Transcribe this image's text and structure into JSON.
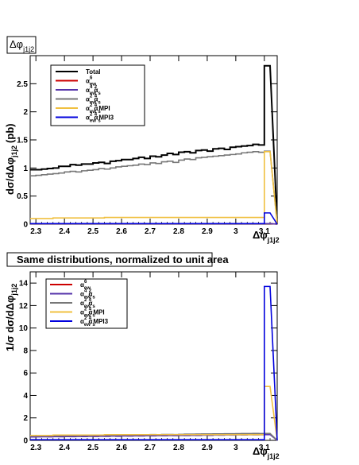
{
  "chart_data": [
    {
      "type": "line",
      "title": "Δφ_{j1j2}",
      "title_main": "Δφ",
      "title_sub": "j1j2",
      "xlabel": "Δφ_{j1j2}",
      "xlabel_main": "Δφ",
      "xlabel_sub": "j1j2",
      "ylabel": "dσ/dΔφ_{j1j2} (pb)",
      "ylabel_main": "dσ/dΔφ",
      "ylabel_sub": "j1j2",
      "ylabel_unit": "(pb)",
      "xlim": [
        2.28,
        3.145
      ],
      "ylim": [
        0,
        3.0
      ],
      "x_ticks": [
        2.3,
        2.4,
        2.5,
        2.6,
        2.7,
        2.8,
        2.9,
        3,
        3.1
      ],
      "y_ticks": [
        0,
        0.5,
        1,
        1.5,
        2,
        2.5
      ],
      "legend_position": "top-left",
      "bin_edges": [
        2.28,
        2.3,
        2.32,
        2.34,
        2.36,
        2.38,
        2.4,
        2.42,
        2.44,
        2.46,
        2.48,
        2.5,
        2.52,
        2.54,
        2.56,
        2.58,
        2.6,
        2.62,
        2.64,
        2.66,
        2.68,
        2.7,
        2.72,
        2.74,
        2.76,
        2.78,
        2.8,
        2.82,
        2.84,
        2.86,
        2.88,
        2.9,
        2.92,
        2.94,
        2.96,
        2.98,
        3.0,
        3.02,
        3.04,
        3.06,
        3.08,
        3.1,
        3.12,
        3.145
      ],
      "series": [
        {
          "name": "Total",
          "color": "#000000",
          "values": [
            0.97,
            0.97,
            0.98,
            0.99,
            1.0,
            1.03,
            1.03,
            1.06,
            1.05,
            1.07,
            1.07,
            1.09,
            1.1,
            1.08,
            1.12,
            1.13,
            1.15,
            1.15,
            1.17,
            1.19,
            1.17,
            1.21,
            1.2,
            1.23,
            1.26,
            1.24,
            1.28,
            1.29,
            1.27,
            1.31,
            1.32,
            1.3,
            1.34,
            1.35,
            1.33,
            1.37,
            1.38,
            1.39,
            1.4,
            1.42,
            1.41,
            2.82
          ]
        },
        {
          "name": "α_{ew}^{6}",
          "color": "#cc0000",
          "values": [
            0.01,
            0.01,
            0.01,
            0.01,
            0.01,
            0.01,
            0.01,
            0.01,
            0.01,
            0.01,
            0.01,
            0.01,
            0.01,
            0.01,
            0.01,
            0.01,
            0.01,
            0.01,
            0.01,
            0.01,
            0.01,
            0.01,
            0.01,
            0.01,
            0.01,
            0.01,
            0.01,
            0.01,
            0.01,
            0.01,
            0.01,
            0.01,
            0.01,
            0.01,
            0.01,
            0.01,
            0.01,
            0.01,
            0.01,
            0.01,
            0.01,
            0.01
          ]
        },
        {
          "name": "α_{ew}^{4} α_{s}^{2}",
          "color": "#5533aa",
          "values": [
            0.01,
            0.01,
            0.01,
            0.01,
            0.01,
            0.01,
            0.01,
            0.01,
            0.01,
            0.01,
            0.01,
            0.01,
            0.01,
            0.01,
            0.01,
            0.01,
            0.01,
            0.01,
            0.01,
            0.01,
            0.01,
            0.01,
            0.01,
            0.01,
            0.01,
            0.01,
            0.01,
            0.01,
            0.01,
            0.01,
            0.01,
            0.01,
            0.01,
            0.01,
            0.01,
            0.01,
            0.01,
            0.01,
            0.01,
            0.01,
            0.01,
            0.01
          ]
        },
        {
          "name": "α_{ew}^{2} α_{s}^{4}",
          "color": "#777777",
          "values": [
            0.86,
            0.87,
            0.88,
            0.89,
            0.9,
            0.91,
            0.93,
            0.94,
            0.93,
            0.95,
            0.96,
            0.97,
            0.99,
            0.98,
            1.0,
            1.02,
            1.03,
            1.04,
            1.05,
            1.07,
            1.06,
            1.09,
            1.08,
            1.11,
            1.12,
            1.1,
            1.14,
            1.16,
            1.15,
            1.18,
            1.19,
            1.2,
            1.21,
            1.22,
            1.23,
            1.24,
            1.25,
            1.27,
            1.28,
            1.29,
            1.28,
            1.3
          ]
        },
        {
          "name": "α_{ew}^{2} α_{s}^{4} MPI",
          "color": "#f0c040",
          "values": [
            0.1,
            0.1,
            0.1,
            0.1,
            0.11,
            0.11,
            0.11,
            0.11,
            0.11,
            0.11,
            0.11,
            0.11,
            0.11,
            0.12,
            0.12,
            0.12,
            0.12,
            0.12,
            0.12,
            0.12,
            0.12,
            0.12,
            0.12,
            0.12,
            0.12,
            0.12,
            0.12,
            0.12,
            0.12,
            0.12,
            0.12,
            0.12,
            0.12,
            0.12,
            0.12,
            0.12,
            0.12,
            0.12,
            0.12,
            0.12,
            0.12,
            1.29
          ]
        },
        {
          "name": "α_{ew}^{2} α_{s}^{4} MPI_3",
          "color": "#0000dd",
          "values": [
            0.01,
            0.01,
            0.01,
            0.01,
            0.01,
            0.01,
            0.01,
            0.01,
            0.01,
            0.01,
            0.01,
            0.01,
            0.01,
            0.01,
            0.01,
            0.01,
            0.01,
            0.01,
            0.01,
            0.01,
            0.01,
            0.01,
            0.01,
            0.01,
            0.01,
            0.01,
            0.01,
            0.01,
            0.01,
            0.01,
            0.01,
            0.01,
            0.01,
            0.01,
            0.01,
            0.01,
            0.01,
            0.01,
            0.01,
            0.01,
            0.01,
            0.2
          ]
        }
      ]
    },
    {
      "type": "line",
      "title": "Same distributions, normalized to unit area",
      "xlabel": "Δφ_{j1j2}",
      "xlabel_main": "Δφ",
      "xlabel_sub": "j1j2",
      "ylabel": "1/σ dσ/dΔφ_{j1j2}",
      "ylabel_main": "1/σ dσ/dΔφ",
      "ylabel_sub": "j1j2",
      "xlim": [
        2.28,
        3.145
      ],
      "ylim": [
        0,
        15
      ],
      "x_ticks": [
        2.3,
        2.4,
        2.5,
        2.6,
        2.7,
        2.8,
        2.9,
        3,
        3.1
      ],
      "y_ticks": [
        0,
        2,
        4,
        6,
        8,
        10,
        12,
        14
      ],
      "legend_position": "top-left",
      "bin_edges": [
        2.28,
        2.3,
        2.32,
        2.34,
        2.36,
        2.38,
        2.4,
        2.42,
        2.44,
        2.46,
        2.48,
        2.5,
        2.52,
        2.54,
        2.56,
        2.58,
        2.6,
        2.62,
        2.64,
        2.66,
        2.68,
        2.7,
        2.72,
        2.74,
        2.76,
        2.78,
        2.8,
        2.82,
        2.84,
        2.86,
        2.88,
        2.9,
        2.92,
        2.94,
        2.96,
        2.98,
        3.0,
        3.02,
        3.04,
        3.06,
        3.08,
        3.1,
        3.12,
        3.145
      ],
      "series": [
        {
          "name": "α_{ew}^{6}",
          "color": "#cc0000",
          "values": [
            0.38,
            0.39,
            0.4,
            0.38,
            0.41,
            0.4,
            0.42,
            0.41,
            0.43,
            0.42,
            0.44,
            0.43,
            0.45,
            0.44,
            0.45,
            0.46,
            0.45,
            0.47,
            0.46,
            0.48,
            0.47,
            0.48,
            0.49,
            0.48,
            0.5,
            0.49,
            0.5,
            0.51,
            0.5,
            0.52,
            0.51,
            0.52,
            0.53,
            0.52,
            0.54,
            0.53,
            0.54,
            0.55,
            0.54,
            0.55,
            0.56,
            0.55
          ]
        },
        {
          "name": "α_{ew}^{4} α_{s}^{2}",
          "color": "#5533aa",
          "values": [
            0.3,
            0.31,
            0.32,
            0.31,
            0.33,
            0.32,
            0.34,
            0.33,
            0.35,
            0.34,
            0.36,
            0.35,
            0.37,
            0.36,
            0.38,
            0.37,
            0.39,
            0.38,
            0.4,
            0.39,
            0.41,
            0.4,
            0.42,
            0.41,
            0.43,
            0.42,
            0.44,
            0.43,
            0.45,
            0.44,
            0.46,
            0.45,
            0.47,
            0.46,
            0.48,
            0.47,
            0.49,
            0.48,
            0.5,
            0.49,
            0.5,
            0.51
          ]
        },
        {
          "name": "α_{ew}^{2} α_{s}^{4}",
          "color": "#777777",
          "values": [
            0.4,
            0.41,
            0.41,
            0.42,
            0.42,
            0.43,
            0.44,
            0.44,
            0.44,
            0.45,
            0.45,
            0.46,
            0.47,
            0.46,
            0.47,
            0.48,
            0.49,
            0.49,
            0.5,
            0.51,
            0.5,
            0.52,
            0.51,
            0.53,
            0.53,
            0.52,
            0.54,
            0.55,
            0.55,
            0.56,
            0.57,
            0.57,
            0.58,
            0.58,
            0.59,
            0.59,
            0.6,
            0.61,
            0.61,
            0.62,
            0.61,
            0.62
          ]
        },
        {
          "name": "α_{ew}^{2} α_{s}^{4} MPI",
          "color": "#f0c040",
          "values": [
            0.43,
            0.43,
            0.43,
            0.43,
            0.47,
            0.47,
            0.47,
            0.47,
            0.47,
            0.47,
            0.47,
            0.47,
            0.47,
            0.51,
            0.51,
            0.51,
            0.51,
            0.51,
            0.51,
            0.51,
            0.51,
            0.51,
            0.51,
            0.51,
            0.51,
            0.51,
            0.51,
            0.51,
            0.51,
            0.51,
            0.51,
            0.51,
            0.51,
            0.51,
            0.51,
            0.51,
            0.51,
            0.51,
            0.51,
            0.51,
            0.51,
            4.8
          ]
        },
        {
          "name": "α_{ew}^{2} α_{s}^{4} MPI_3",
          "color": "#0000dd",
          "values": [
            0.06,
            0.06,
            0.06,
            0.06,
            0.06,
            0.06,
            0.06,
            0.06,
            0.06,
            0.06,
            0.06,
            0.06,
            0.06,
            0.06,
            0.06,
            0.06,
            0.06,
            0.06,
            0.06,
            0.06,
            0.06,
            0.06,
            0.06,
            0.06,
            0.06,
            0.06,
            0.06,
            0.06,
            0.06,
            0.06,
            0.06,
            0.06,
            0.06,
            0.06,
            0.06,
            0.06,
            0.06,
            0.06,
            0.06,
            0.06,
            0.06,
            13.7
          ]
        }
      ]
    }
  ]
}
